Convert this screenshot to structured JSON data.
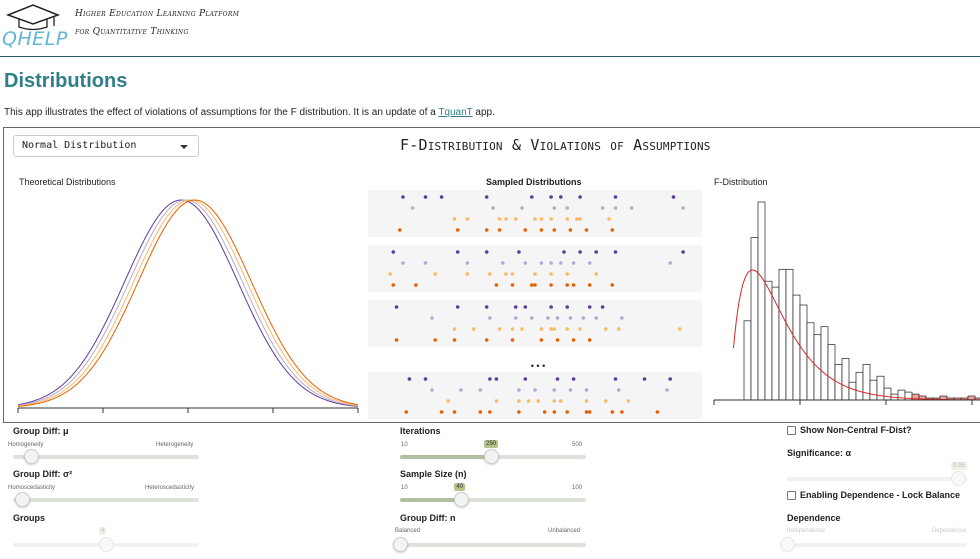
{
  "header": {
    "logo_text": "QHELP",
    "line1": "Higher Education Learning Platform",
    "line2": "for Quantitative Thinking"
  },
  "page": {
    "title": "Distributions",
    "intro_before": "This app illustrates the effect of violations of assumptions for the F distribution. It is an update of a ",
    "intro_link": "TquanT",
    "intro_after": " app."
  },
  "app": {
    "select_value": "Normal Distribution",
    "title": "F-Distribution & Violations of Assumptions",
    "theoretical_label": "Theoretical Distributions",
    "sampled_label": "Sampled Distributions",
    "fdist_label": "F-Distribution",
    "ellipsis": "• • •"
  },
  "controls": {
    "group_diff_mu": {
      "label": "Group Diff: μ",
      "min_label": "Homogeneity",
      "max_label": "Heterogeneity",
      "value_fraction": 0.1
    },
    "group_diff_sigma": {
      "label": "Group Diff: σ²",
      "min_label": "Homoscedasticity",
      "max_label": "Heteroscedasticity",
      "value_fraction": 0.05
    },
    "groups": {
      "label": "Groups",
      "value": "4",
      "value_fraction": 0.5
    },
    "iterations": {
      "label": "Iterations",
      "min": "10",
      "max": "500",
      "value": "250",
      "value_fraction": 0.49
    },
    "sample_size": {
      "label": "Sample Size (n)",
      "min": "10",
      "max": "100",
      "value": "40",
      "value_fraction": 0.33
    },
    "group_diff_n": {
      "label": "Group Diff: n",
      "min_label": "Balanced",
      "max_label": "Unbalanced",
      "value_fraction": 0.0
    },
    "non_central": {
      "label": "Show Non-Central F-Dist?",
      "checked": false
    },
    "significance": {
      "label": "Significance: α",
      "value": "0.05",
      "value_fraction": 0.95
    },
    "dependence_toggle": {
      "label": "Enabling Dependence - Lock Balance",
      "checked": false
    },
    "dependence": {
      "label": "Dependence",
      "min_label": "Independence",
      "max_label": "Dependence",
      "value_fraction": 0.0
    }
  },
  "colors": {
    "accent": "#2f7f8a",
    "logo": "#5fb7d4",
    "dark_purple": "#5e3c99",
    "light_purple": "#b2abd2",
    "light_orange": "#fdb863",
    "dark_orange": "#e66101",
    "fcurve": "#d62728",
    "crit_fill": "#f4a0a0"
  },
  "chart_data": [
    {
      "type": "line",
      "title": "Theoretical Distributions",
      "xlabel": "",
      "ylabel": "",
      "series": [
        {
          "color": "#5e3c99",
          "shift": -0.12
        },
        {
          "color": "#b2abd2",
          "shift": -0.04
        },
        {
          "color": "#fdb863",
          "shift": 0.04
        },
        {
          "color": "#e66101",
          "shift": 0.12
        }
      ],
      "xlim": [
        -3,
        3
      ],
      "grid": false
    },
    {
      "type": "scatter",
      "title": "Sampled Distributions",
      "panels": 4,
      "rows_per_panel": [
        "#5e3c99",
        "#b2abd2",
        "#fdb863",
        "#e66101"
      ],
      "points": [
        [
          [
            0.09,
            0.16,
            0.21,
            0.35,
            0.49,
            0.55,
            0.58,
            0.64,
            0.75,
            0.93
          ],
          [
            0.12,
            0.37,
            0.46,
            0.56,
            0.6,
            0.71,
            0.75,
            0.8,
            0.96
          ],
          [
            0.25,
            0.29,
            0.39,
            0.41,
            0.44,
            0.5,
            0.52,
            0.55,
            0.6,
            0.63,
            0.64,
            0.73
          ],
          [
            0.08,
            0.26,
            0.35,
            0.39,
            0.47,
            0.52,
            0.56,
            0.61,
            0.66,
            0.74
          ]
        ],
        [
          [
            0.06,
            0.26,
            0.35,
            0.45,
            0.59,
            0.64,
            0.69,
            0.75,
            0.96
          ],
          [
            0.09,
            0.16,
            0.29,
            0.4,
            0.47,
            0.52,
            0.55,
            0.58,
            0.62,
            0.67,
            0.92
          ],
          [
            0.05,
            0.19,
            0.29,
            0.36,
            0.41,
            0.43,
            0.5,
            0.55,
            0.6,
            0.69
          ],
          [
            0.06,
            0.13,
            0.38,
            0.43,
            0.49,
            0.5,
            0.55,
            0.6,
            0.62,
            0.67,
            0.74
          ]
        ],
        [
          [
            0.07,
            0.26,
            0.35,
            0.44,
            0.47,
            0.55,
            0.6,
            0.67,
            0.71
          ],
          [
            0.18,
            0.36,
            0.44,
            0.49,
            0.54,
            0.57,
            0.61,
            0.65,
            0.69,
            0.77
          ],
          [
            0.25,
            0.31,
            0.39,
            0.43,
            0.46,
            0.52,
            0.55,
            0.56,
            0.6,
            0.64,
            0.72,
            0.76,
            0.95
          ],
          [
            0.07,
            0.19,
            0.25,
            0.35,
            0.43,
            0.52,
            0.57,
            0.62,
            0.67
          ]
        ],
        [
          [
            0.11,
            0.16,
            0.36,
            0.38,
            0.47,
            0.57,
            0.62,
            0.75,
            0.84,
            0.92
          ],
          [
            0.18,
            0.27,
            0.33,
            0.45,
            0.5,
            0.56,
            0.61,
            0.66,
            0.76,
            0.91
          ],
          [
            0.23,
            0.38,
            0.45,
            0.48,
            0.51,
            0.56,
            0.58,
            0.66,
            0.72,
            0.79
          ],
          [
            0.1,
            0.21,
            0.25,
            0.33,
            0.36,
            0.45,
            0.53,
            0.56,
            0.6,
            0.66,
            0.67,
            0.74,
            0.77,
            0.88
          ]
        ]
      ]
    },
    {
      "type": "bar",
      "title": "F-Distribution",
      "bin_width": 0.1,
      "x_start": 0.0,
      "values": [
        0,
        0,
        40,
        82,
        100,
        60,
        57,
        66,
        66,
        53,
        48,
        39,
        33,
        37,
        28,
        18,
        21,
        9,
        14,
        18,
        10,
        12,
        6,
        3,
        5,
        4,
        3,
        2,
        1,
        1,
        2,
        1,
        1,
        1,
        2,
        1
      ],
      "critical_from_bin": 26,
      "curve": "f-density",
      "grid": false
    }
  ]
}
